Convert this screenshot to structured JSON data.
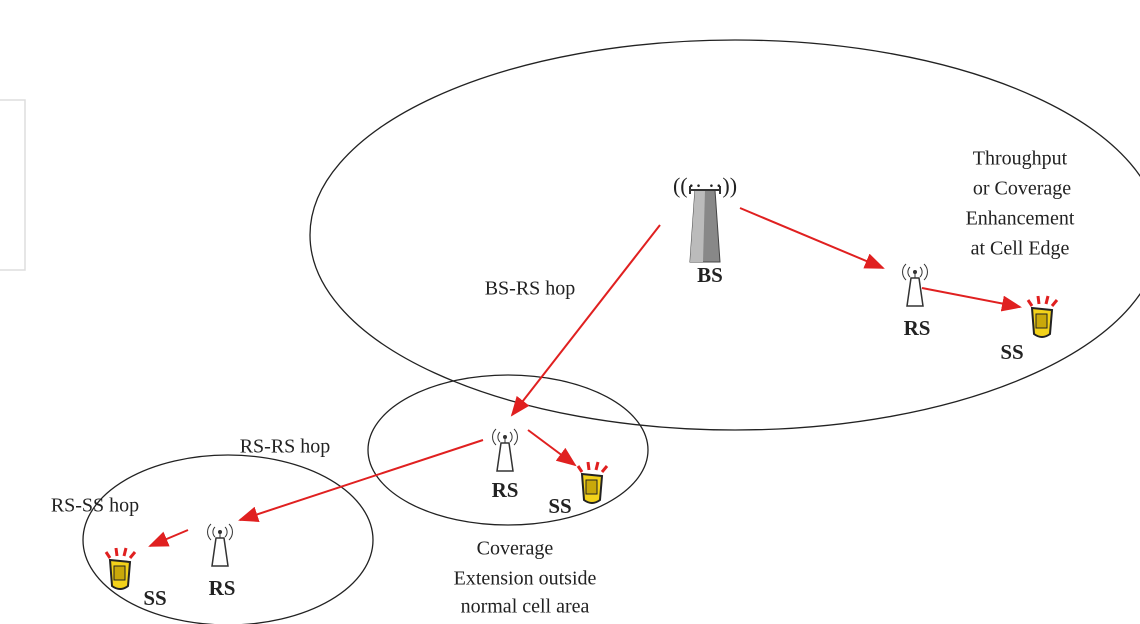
{
  "nodes": [
    {
      "label": "BS"
    },
    {
      "label": "RS"
    },
    {
      "label": "SS"
    },
    {
      "label": "RS"
    },
    {
      "label": "SS"
    },
    {
      "label": "RS"
    },
    {
      "label": "SS"
    }
  ],
  "links": [
    {
      "label": "BS-RS hop"
    },
    {
      "label": "RS-RS hop"
    },
    {
      "label": "RS-SS hop"
    }
  ],
  "annotations": [
    {
      "lines": [
        "Throughput",
        "or Coverage",
        "Enhancement",
        "at Cell Edge"
      ]
    },
    {
      "lines": [
        "Coverage",
        "Extension outside",
        "normal cell area"
      ]
    }
  ]
}
